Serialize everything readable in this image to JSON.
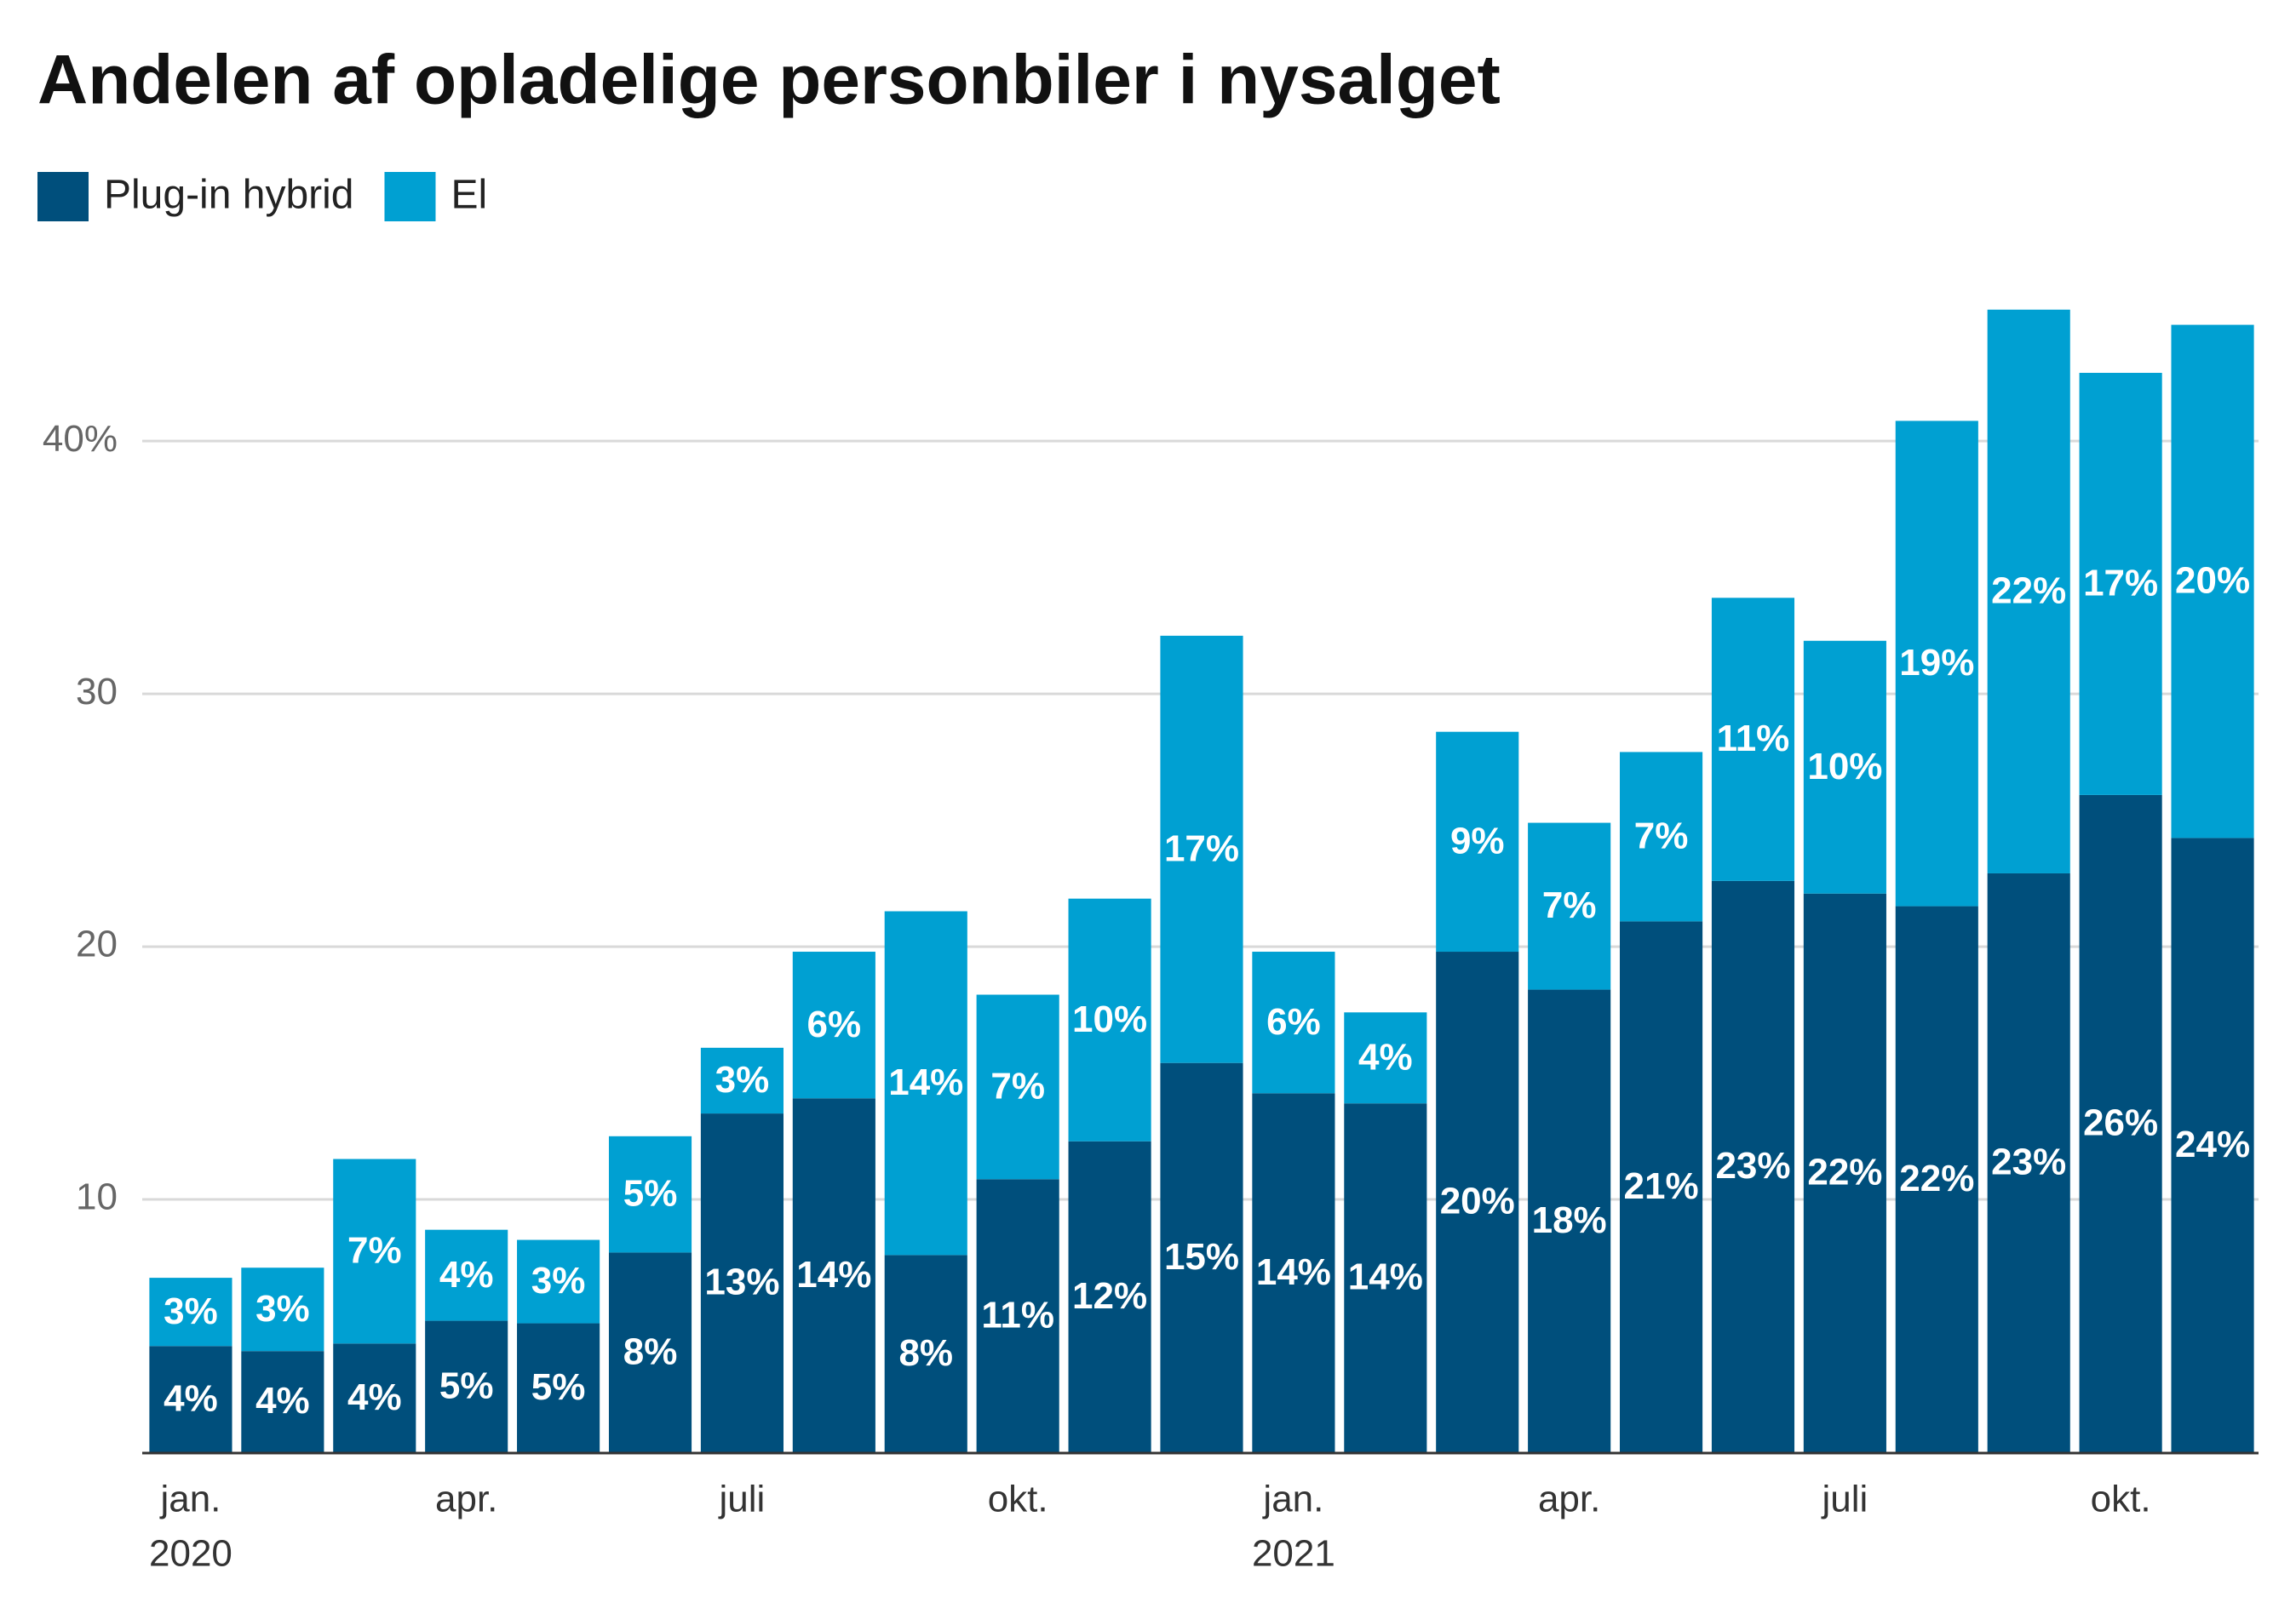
{
  "chart_data": {
    "type": "stacked_bar",
    "title": "Andelen af opladelige personbiler i nysalget",
    "categories": [
      "jan.",
      null,
      null,
      "apr.",
      null,
      null,
      "juli",
      null,
      null,
      "okt.",
      null,
      null,
      "jan.",
      null,
      null,
      "apr.",
      null,
      null,
      "juli",
      null,
      null,
      "okt.",
      null
    ],
    "category_years": [
      "2020",
      null,
      null,
      null,
      null,
      null,
      null,
      null,
      null,
      null,
      null,
      null,
      "2021",
      null,
      null,
      null,
      null,
      null,
      null,
      null,
      null,
      null,
      null
    ],
    "series": [
      {
        "name": "Plug-in hybrid",
        "color": "#004f7c",
        "values": [
          4.2,
          4.0,
          4.3,
          5.2,
          5.1,
          7.9,
          13.4,
          14.0,
          7.8,
          10.8,
          12.3,
          15.4,
          14.2,
          13.8,
          19.8,
          18.3,
          21.0,
          22.6,
          22.1,
          21.6,
          22.9,
          26.0,
          24.3
        ],
        "value_labels": [
          "4%",
          "4%",
          "4%",
          "5%",
          "5%",
          "8%",
          "13%",
          "14%",
          "8%",
          "11%",
          "12%",
          "15%",
          "14%",
          "14%",
          "20%",
          "18%",
          "21%",
          "23%",
          "22%",
          "22%",
          "23%",
          "26%",
          "24%"
        ]
      },
      {
        "name": "El",
        "color": "#00a0d2",
        "values": [
          2.7,
          3.3,
          7.3,
          3.6,
          3.3,
          4.6,
          2.6,
          5.8,
          13.6,
          7.3,
          9.6,
          16.9,
          5.6,
          3.6,
          8.7,
          6.6,
          6.7,
          11.2,
          10.0,
          19.2,
          22.3,
          16.7,
          20.3
        ],
        "value_labels": [
          "3%",
          "3%",
          "7%",
          "4%",
          "3%",
          "5%",
          "3%",
          "6%",
          "14%",
          "7%",
          "10%",
          "17%",
          "6%",
          "4%",
          "9%",
          "7%",
          "7%",
          "11%",
          "10%",
          "19%",
          "22%",
          "17%",
          "20%"
        ]
      }
    ],
    "ylim": [
      0,
      46
    ],
    "yticks": [
      10,
      20,
      30,
      {
        "value": 40,
        "label": "40%"
      }
    ],
    "grid": true
  }
}
